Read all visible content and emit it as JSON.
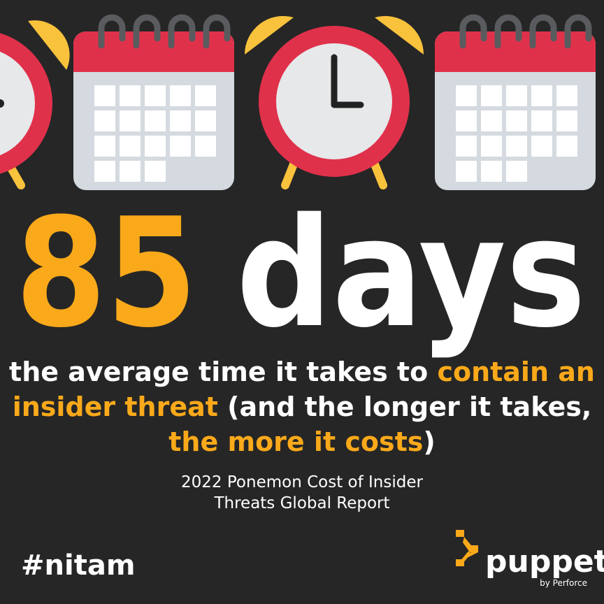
{
  "headline": {
    "number": "85",
    "unit": "days"
  },
  "subtitle": {
    "lines": [
      [
        {
          "text": "the average time it takes to ",
          "highlight": false
        },
        {
          "text": "contain an",
          "highlight": true
        }
      ],
      [
        {
          "text": "insider threat",
          "highlight": true
        },
        {
          "text": " (and the longer it takes,",
          "highlight": false
        }
      ],
      [
        {
          "text": "the more it costs",
          "highlight": true
        },
        {
          "text": ")",
          "highlight": false
        }
      ]
    ]
  },
  "source": {
    "lines": [
      "2022 Ponemon Cost of Insider",
      "Threats Global Report"
    ]
  },
  "hashtag": "#nitam",
  "logo": {
    "name": "puppet",
    "tagline": "by Perforce"
  }
}
